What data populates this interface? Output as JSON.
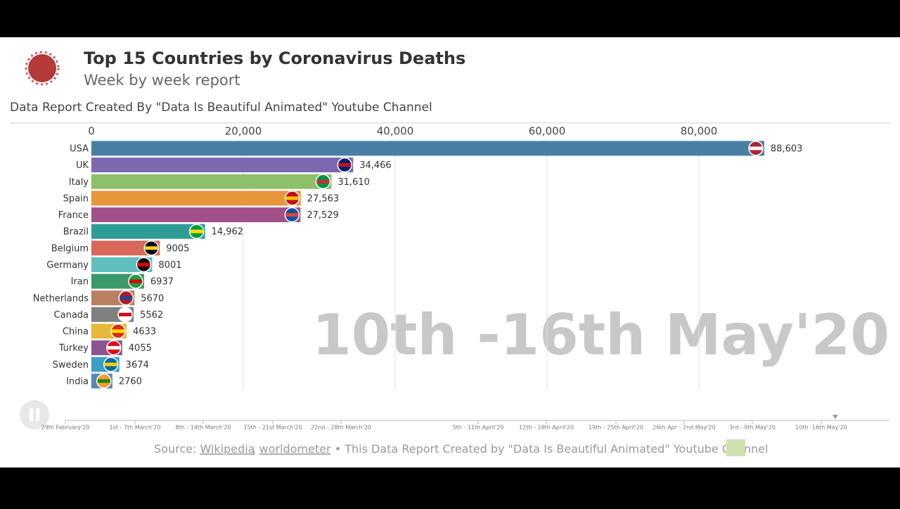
{
  "chart_data": {
    "type": "bar",
    "orientation": "horizontal",
    "title": "Top 15 Countries by Coronavirus Deaths",
    "subtitle": "Week by week report",
    "credit": "Data Report Created By \"Data Is Beautiful Animated\" Youtube Channel",
    "period": "10th -16th May'20",
    "categories": [
      "USA",
      "UK",
      "Italy",
      "Spain",
      "France",
      "Brazil",
      "Belgium",
      "Germany",
      "Iran",
      "Netherlands",
      "Canada",
      "China",
      "Turkey",
      "Sweden",
      "India"
    ],
    "values": [
      88603,
      34466,
      31610,
      27563,
      27529,
      14962,
      9005,
      8001,
      6937,
      5670,
      5562,
      4633,
      4055,
      3674,
      2760
    ],
    "value_labels": [
      "88,603",
      "34,466",
      "31,610",
      "27,563",
      "27,529",
      "14,962",
      "9005",
      "8001",
      "6937",
      "5670",
      "5562",
      "4633",
      "4055",
      "3674",
      "2760"
    ],
    "colors": [
      "#4a7fa5",
      "#7b68b0",
      "#8cc06a",
      "#e8963a",
      "#a2508a",
      "#2e9d96",
      "#d9685a",
      "#5fbfbf",
      "#3a9a6a",
      "#b98060",
      "#808080",
      "#e8b83a",
      "#8a5590",
      "#3aa0c8",
      "#5a86b8"
    ],
    "xlim": [
      0,
      100000
    ],
    "xticks": [
      0,
      {
        "value": 20000,
        "label": "20,000"
      },
      {
        "value": 40000,
        "label": "40,000"
      },
      {
        "value": 60000,
        "label": "60,000"
      },
      {
        "value": 80000,
        "label": "80,000"
      }
    ],
    "grid": true,
    "timeline": [
      "29th February'20",
      "1st - 7th March'20",
      "8th - 14th March'20",
      "15th - 21st March'20",
      "22nd - 28th March'20",
      "5th - 11th April'20",
      "12th - 18th April'20",
      "19th - 25th April'20",
      "26th Apr - 2nd May'20",
      "3rd - 9th May'20",
      "10th -16th May'20"
    ],
    "source": {
      "prefix": "Source:",
      "link1": "Wikipedia",
      "sep": ",",
      "link2": "worldometer",
      "rest": "• This Data Report Created by \"Data Is Beautiful Animated\" Youtube Channel"
    }
  }
}
